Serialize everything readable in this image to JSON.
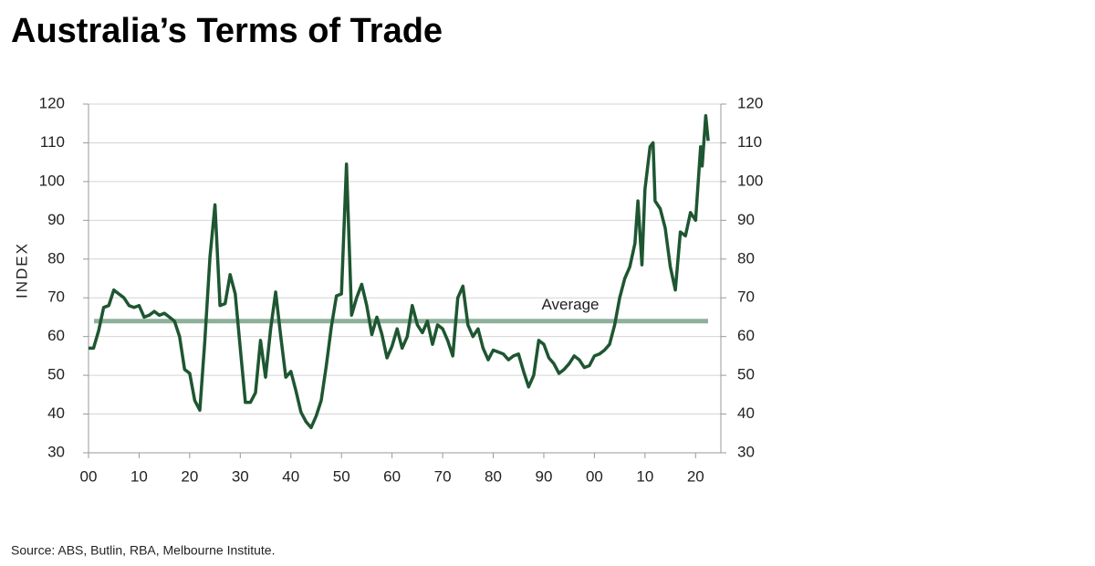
{
  "chart_data": {
    "type": "line",
    "title": "Australia’s Terms of Trade",
    "ylabel": "INDEX",
    "source": "Source: ABS, Butlin, RBA, Melbourne Institute.",
    "x": [
      1900,
      1901,
      1902,
      1903,
      1904,
      1905,
      1906,
      1907,
      1908,
      1909,
      1910,
      1911,
      1912,
      1913,
      1914,
      1915,
      1916,
      1917,
      1918,
      1919,
      1920,
      1921,
      1922,
      1923,
      1924,
      1925,
      1926,
      1927,
      1928,
      1929,
      1930,
      1931,
      1932,
      1933,
      1934,
      1935,
      1936,
      1937,
      1938,
      1939,
      1940,
      1941,
      1942,
      1943,
      1944,
      1945,
      1946,
      1947,
      1948,
      1949,
      1950,
      1951,
      1952,
      1953,
      1954,
      1955,
      1956,
      1957,
      1958,
      1959,
      1960,
      1961,
      1962,
      1963,
      1964,
      1965,
      1966,
      1967,
      1968,
      1969,
      1970,
      1971,
      1972,
      1973,
      1974,
      1975,
      1976,
      1977,
      1978,
      1979,
      1980,
      1981,
      1982,
      1983,
      1984,
      1985,
      1986,
      1987,
      1988,
      1989,
      1990,
      1991,
      1992,
      1993,
      1994,
      1995,
      1996,
      1997,
      1998,
      1999,
      2000,
      2001,
      2002,
      2003,
      2004,
      2005,
      2006,
      2007,
      2008,
      2008.6,
      2009.4,
      2010,
      2011,
      2011.6,
      2012,
      2013,
      2014,
      2015,
      2016,
      2017,
      2018,
      2019,
      2020,
      2021,
      2021.3,
      2022,
      2022.5
    ],
    "series": [
      {
        "name": "Terms of trade",
        "color": "#1e5631",
        "values": [
          57,
          57,
          61.5,
          67.5,
          68,
          72,
          71,
          70,
          68,
          67.5,
          68,
          65,
          65.5,
          66.5,
          65.5,
          66,
          65,
          64,
          60,
          51.5,
          50.5,
          43.5,
          41,
          59,
          80.5,
          94,
          68,
          68.5,
          76,
          71,
          57,
          43,
          43,
          45.5,
          59,
          49.5,
          62,
          71.5,
          60,
          49.5,
          51,
          46,
          40.5,
          38,
          36.5,
          39.5,
          43.5,
          52.5,
          62.5,
          70.5,
          71,
          104.5,
          65.5,
          70,
          73.5,
          68,
          60.5,
          65,
          60.5,
          54.5,
          57.5,
          62,
          57,
          60,
          68,
          63,
          61,
          64,
          58,
          63,
          62,
          59,
          55,
          70,
          73,
          63,
          60,
          62,
          57,
          54,
          56.5,
          56,
          55.5,
          54,
          55,
          55.5,
          51,
          47,
          50,
          59,
          58,
          54.5,
          53,
          50.5,
          51.5,
          53,
          55,
          54,
          52,
          52.5,
          55,
          55.5,
          56.5,
          58,
          63,
          70,
          75,
          78,
          84,
          95,
          78.5,
          98,
          109,
          110,
          95,
          93,
          88,
          78,
          72,
          87,
          86,
          92,
          90,
          109,
          104,
          117,
          110.5
        ]
      }
    ],
    "average": {
      "value": 64,
      "label": "Average",
      "color": "#8fb09a"
    },
    "xlim": [
      1900,
      2025
    ],
    "xticks": [
      {
        "value": 1900,
        "label": "00"
      },
      {
        "value": 1910,
        "label": "10"
      },
      {
        "value": 1920,
        "label": "20"
      },
      {
        "value": 1930,
        "label": "30"
      },
      {
        "value": 1940,
        "label": "40"
      },
      {
        "value": 1950,
        "label": "50"
      },
      {
        "value": 1960,
        "label": "60"
      },
      {
        "value": 1970,
        "label": "70"
      },
      {
        "value": 1980,
        "label": "80"
      },
      {
        "value": 1990,
        "label": "90"
      },
      {
        "value": 2000,
        "label": "00"
      },
      {
        "value": 2010,
        "label": "10"
      },
      {
        "value": 2020,
        "label": "20"
      }
    ],
    "ylim": [
      30,
      120
    ],
    "yticks": [
      30,
      40,
      50,
      60,
      70,
      80,
      90,
      100,
      110,
      120
    ],
    "y2lim": [
      30,
      120
    ],
    "y2ticks": [
      30,
      40,
      50,
      60,
      70,
      80,
      90,
      100,
      110,
      120
    ],
    "grid": true
  }
}
